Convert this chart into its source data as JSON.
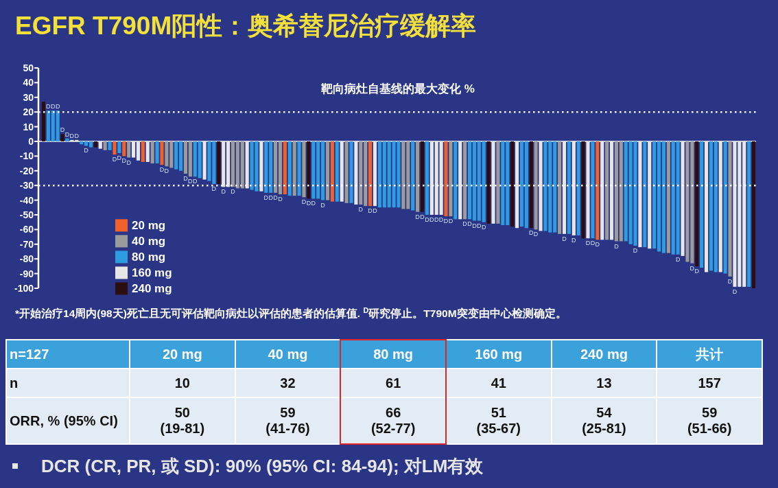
{
  "chart_data": [
    {
      "type": "bar",
      "title": "EGFR T790M阳性：奥希替尼治疗缓解率",
      "ylabel": "靶向病灶自基线的最大变化 %",
      "categories": [
        null,
        null,
        null,
        null,
        null,
        null,
        null,
        null,
        null,
        null,
        null,
        null,
        null,
        null,
        null,
        null,
        null,
        null,
        null,
        null,
        null,
        null,
        null,
        null,
        null,
        null,
        null,
        null,
        null,
        null,
        null,
        null,
        null,
        null,
        null,
        null,
        null,
        null,
        null,
        null,
        null,
        null,
        null,
        null,
        null,
        null,
        null,
        null,
        null,
        null,
        null,
        null,
        null,
        null,
        null,
        null,
        null,
        null,
        null,
        null,
        null,
        null,
        null,
        null,
        null,
        null,
        null,
        null,
        null,
        null,
        null,
        null,
        null,
        null,
        null,
        null,
        null,
        null,
        null,
        null,
        null,
        null,
        null,
        null,
        null,
        null,
        null,
        null,
        null,
        null,
        null,
        null,
        null,
        null,
        null,
        null,
        null,
        null,
        null,
        null,
        null,
        null,
        null,
        null,
        null,
        null,
        null,
        null,
        null,
        null,
        null,
        null,
        null,
        null,
        null,
        null,
        null,
        null,
        null,
        null,
        null,
        null,
        null,
        null,
        null,
        null,
        null,
        null,
        null,
        null,
        null,
        null,
        null,
        null,
        null,
        null,
        null,
        null,
        null,
        null,
        null,
        null,
        null,
        null,
        null,
        null,
        null,
        null,
        null,
        null,
        null
      ],
      "series": [
        {
          "name": "20 mg",
          "color": "#f0622d",
          "values": [
            null,
            null,
            null,
            null,
            null,
            null,
            null,
            null,
            null,
            null,
            null,
            null,
            null,
            null,
            null,
            -9,
            null,
            -10,
            null,
            null,
            null,
            -14,
            null,
            null,
            null,
            -16,
            null,
            null,
            null,
            null,
            null,
            null,
            null,
            null,
            null,
            null,
            null,
            null,
            null,
            null,
            null,
            null,
            null,
            null,
            null,
            null,
            null,
            null,
            null,
            null,
            null,
            -36,
            null,
            null,
            null,
            null,
            null,
            null,
            null,
            null,
            null,
            -41,
            null,
            null,
            null,
            null,
            null,
            null,
            null,
            -44,
            null,
            null,
            null,
            null,
            null,
            null,
            null,
            null,
            null,
            null,
            null,
            null,
            null,
            null,
            null,
            -51,
            null,
            null,
            null,
            null,
            null,
            null,
            null,
            null,
            null,
            null,
            null,
            null,
            null,
            null,
            null,
            null,
            null,
            null,
            null,
            null,
            null,
            null,
            null,
            null,
            null,
            null,
            null,
            null,
            null,
            null,
            null,
            -67,
            null,
            null,
            null,
            null,
            null,
            null,
            null,
            null,
            null,
            null,
            null,
            null,
            null,
            null,
            null,
            null,
            null,
            null,
            null,
            null,
            null,
            null,
            null,
            null,
            null,
            null,
            null,
            null,
            null,
            null,
            null,
            null,
            null
          ]
        },
        {
          "name": "40 mg",
          "color": "#9b9b9b",
          "values": [
            null,
            null,
            null,
            null,
            null,
            null,
            null,
            null,
            null,
            null,
            null,
            null,
            null,
            -6,
            null,
            null,
            null,
            null,
            -11,
            null,
            null,
            null,
            null,
            -15,
            null,
            null,
            -17,
            -18,
            null,
            null,
            -22,
            -24,
            null,
            null,
            null,
            null,
            null,
            null,
            null,
            null,
            -31,
            -32,
            -32,
            null,
            null,
            null,
            null,
            null,
            null,
            -35,
            -36,
            null,
            null,
            -37,
            null,
            -38,
            null,
            null,
            null,
            null,
            -40,
            null,
            null,
            null,
            -42,
            null,
            null,
            -43,
            -44,
            null,
            null,
            null,
            null,
            null,
            null,
            null,
            -46,
            -46,
            null,
            -48,
            null,
            null,
            null,
            null,
            null,
            null,
            -51,
            null,
            null,
            -53,
            null,
            null,
            null,
            null,
            null,
            null,
            -56,
            null,
            null,
            null,
            null,
            null,
            null,
            null,
            -60,
            null,
            null,
            null,
            null,
            -63,
            null,
            null,
            null,
            null,
            null,
            null,
            null,
            null,
            null,
            -67,
            null,
            -68,
            -68,
            null,
            null,
            null,
            null,
            null,
            null,
            null,
            null,
            null,
            -76,
            null,
            null,
            null,
            -82,
            -83,
            null,
            null,
            null,
            null,
            null,
            null,
            null,
            -92,
            null,
            null,
            null,
            null,
            null
          ]
        },
        {
          "name": "80 mg",
          "color": "#2f9be0",
          "values": [
            null,
            21,
            21,
            21,
            null,
            2,
            null,
            null,
            -2,
            -3,
            -4,
            null,
            null,
            null,
            -6,
            null,
            -8,
            null,
            null,
            null,
            null,
            null,
            null,
            null,
            -15,
            null,
            null,
            null,
            -19,
            -20,
            null,
            null,
            -24,
            -25,
            null,
            -27,
            -29,
            null,
            null,
            null,
            null,
            null,
            null,
            null,
            -33,
            -34,
            null,
            -35,
            -35,
            null,
            null,
            null,
            -37,
            null,
            -37,
            null,
            null,
            -39,
            -39,
            -40,
            null,
            null,
            -41,
            null,
            null,
            -42,
            null,
            null,
            null,
            null,
            null,
            -45,
            -45,
            -45,
            -45,
            -45,
            null,
            null,
            -47,
            null,
            null,
            -50,
            null,
            null,
            null,
            null,
            null,
            -53,
            null,
            null,
            -53,
            -54,
            -54,
            -55,
            null,
            null,
            null,
            -57,
            -57,
            null,
            null,
            -58,
            -59,
            null,
            null,
            null,
            -61,
            -62,
            -62,
            null,
            null,
            -63,
            null,
            -64,
            null,
            null,
            -66,
            null,
            null,
            null,
            null,
            null,
            null,
            -68,
            -70,
            -71,
            null,
            -72,
            null,
            -73,
            -75,
            -76,
            null,
            -77,
            -77,
            null,
            null,
            null,
            null,
            -86,
            null,
            -88,
            -89,
            null,
            -90,
            null,
            null,
            null,
            null,
            -99,
            null
          ]
        },
        {
          "name": "160 mg",
          "color": "#e6e6e6",
          "values": [
            null,
            null,
            null,
            null,
            null,
            null,
            1,
            1,
            null,
            null,
            null,
            null,
            -5,
            null,
            null,
            null,
            null,
            null,
            null,
            -11,
            -13,
            null,
            -14,
            null,
            null,
            null,
            null,
            null,
            null,
            null,
            null,
            null,
            null,
            null,
            -26,
            null,
            null,
            null,
            -31,
            -31,
            null,
            null,
            null,
            -32,
            null,
            null,
            -34,
            null,
            null,
            null,
            null,
            null,
            null,
            null,
            null,
            null,
            null,
            null,
            null,
            null,
            null,
            null,
            null,
            -41,
            null,
            null,
            -43,
            null,
            null,
            null,
            -44,
            null,
            null,
            null,
            null,
            null,
            null,
            null,
            null,
            null,
            null,
            null,
            -50,
            -50,
            -50,
            null,
            null,
            null,
            -53,
            null,
            null,
            null,
            null,
            null,
            null,
            -56,
            null,
            null,
            null,
            null,
            -59,
            null,
            null,
            null,
            null,
            -61,
            null,
            null,
            null,
            null,
            -63,
            null,
            -64,
            null,
            null,
            -66,
            null,
            null,
            -67,
            null,
            -67,
            null,
            null,
            null,
            null,
            null,
            -72,
            null,
            -73,
            null,
            null,
            null,
            null,
            null,
            null,
            -78,
            null,
            null,
            null,
            null,
            -89,
            null,
            null,
            -89,
            null,
            null,
            -99,
            -99,
            -99,
            null,
            null
          ]
        },
        {
          "name": "240 mg",
          "color": "#2b0f10",
          "values": [
            27,
            null,
            null,
            null,
            5,
            null,
            null,
            null,
            null,
            null,
            null,
            -4,
            null,
            null,
            null,
            null,
            null,
            null,
            null,
            null,
            null,
            null,
            null,
            null,
            null,
            null,
            null,
            null,
            null,
            null,
            null,
            null,
            null,
            null,
            null,
            null,
            null,
            -29,
            null,
            null,
            null,
            null,
            null,
            null,
            null,
            null,
            null,
            null,
            null,
            null,
            null,
            null,
            null,
            null,
            null,
            null,
            -39,
            null,
            null,
            null,
            null,
            null,
            null,
            null,
            null,
            null,
            null,
            null,
            null,
            null,
            null,
            null,
            null,
            null,
            null,
            null,
            null,
            null,
            null,
            null,
            -48,
            null,
            null,
            null,
            null,
            null,
            null,
            null,
            null,
            null,
            null,
            null,
            null,
            null,
            -56,
            null,
            null,
            null,
            null,
            -58,
            null,
            null,
            null,
            -59,
            null,
            null,
            null,
            null,
            null,
            null,
            null,
            null,
            null,
            null,
            -66,
            null,
            null,
            null,
            null,
            null,
            null,
            null,
            null,
            null,
            null,
            null,
            null,
            null,
            null,
            null,
            null,
            null,
            null,
            null,
            null,
            null,
            null,
            null,
            -85,
            null,
            null,
            null,
            null,
            null,
            null,
            null,
            null,
            null,
            null,
            null,
            -100
          ]
        }
      ],
      "value_labels": [
        null,
        "D",
        "D",
        "D",
        "D",
        "D",
        "D",
        "D",
        null,
        "D",
        null,
        null,
        null,
        null,
        null,
        "D",
        "D",
        "D",
        "D",
        null,
        null,
        null,
        null,
        null,
        null,
        "D",
        "D",
        null,
        null,
        null,
        "D",
        "D",
        "D",
        null,
        null,
        null,
        "D",
        null,
        "D",
        null,
        "D",
        null,
        null,
        null,
        null,
        null,
        null,
        "D",
        "D",
        "D",
        "D",
        null,
        null,
        null,
        null,
        "D",
        "D",
        "D",
        null,
        "D",
        null,
        null,
        null,
        null,
        null,
        null,
        null,
        "D",
        null,
        "D",
        "D",
        null,
        null,
        null,
        null,
        null,
        null,
        null,
        null,
        "D",
        "D",
        "D",
        "D",
        "D",
        "D",
        "D",
        "D",
        null,
        null,
        "D",
        "D",
        "D",
        "D",
        "D",
        null,
        null,
        null,
        null,
        null,
        null,
        null,
        null,
        null,
        "D",
        "D",
        null,
        null,
        null,
        null,
        null,
        "D",
        null,
        "D",
        null,
        null,
        "D",
        "D",
        "D",
        null,
        null,
        null,
        "D",
        null,
        null,
        null,
        "D",
        null,
        null,
        null,
        null,
        null,
        null,
        null,
        null,
        "D",
        null,
        null,
        "D",
        "D",
        null,
        null,
        null,
        null,
        null,
        null,
        "D",
        "D",
        null,
        null,
        null,
        null
      ],
      "ylim": [
        -100,
        50
      ],
      "yticks": [
        50,
        40,
        30,
        20,
        10,
        0,
        -10,
        -20,
        -30,
        -40,
        -50,
        -60,
        -70,
        -80,
        -90,
        -100
      ],
      "ref_lines": [
        {
          "axis": "y",
          "value": 20,
          "color": "#ffffff",
          "line_style": "dotted"
        },
        {
          "axis": "y",
          "value": -30,
          "color": "#ffffff",
          "line_style": "dotted"
        }
      ],
      "legend": "bottom left",
      "annotations": [
        "*开始治疗14周内(98天)死亡且无可评估靶向病灶以评估的患者的估算值. $^{D}$研究停止。T790M突变由中心检测确定。"
      ]
    },
    {
      "type": "other",
      "title": "n=127",
      "categories": [
        "20 mg",
        "40 mg",
        "80 mg",
        "160 mg",
        "240 mg",
        "共计"
      ],
      "y_categories": [
        "n",
        "ORR, % (95% CI)"
      ],
      "cell_labels": [
        [
          "10",
          "32",
          "61",
          "41",
          "13",
          "157"
        ],
        [
          "50\n(19-81)",
          "59\n(41-76)",
          "66\n(52-77)",
          "51\n(35-67)",
          "54\n(25-81)",
          "59\n(51-66)"
        ]
      ],
      "annotations": [
        "DCR (CR, PR, 或 SD): 90% (95% CI: 84-94); 对LM有效"
      ]
    }
  ]
}
